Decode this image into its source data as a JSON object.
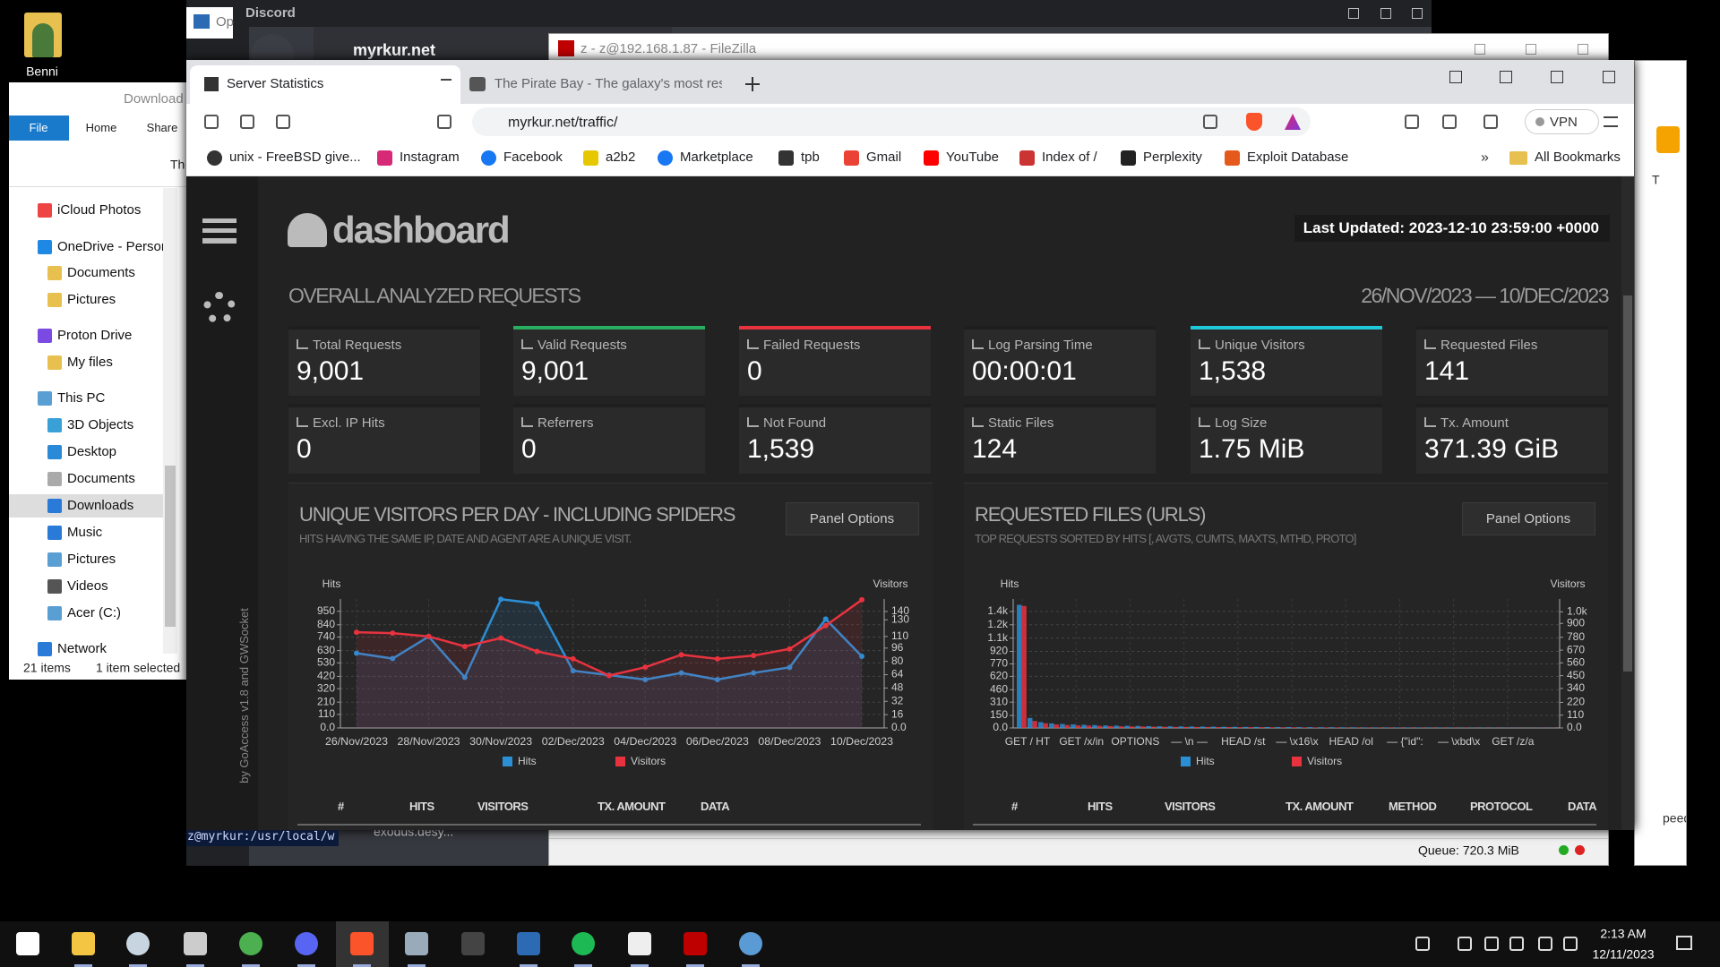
{
  "desktop": {
    "icon_label": "Benni"
  },
  "explorer": {
    "title": "Download",
    "ribbon_tabs": [
      "File",
      "Home",
      "Share"
    ],
    "address": "Th",
    "nav": [
      "iCloud Photos",
      "OneDrive - Person",
      "Documents",
      "Pictures",
      "Proton Drive",
      "My files",
      "This PC",
      "3D Objects",
      "Desktop",
      "Documents",
      "Downloads",
      "Music",
      "Pictures",
      "Videos",
      "Acer (C:)",
      "Network"
    ],
    "status": [
      "21 items",
      "1 item selected"
    ]
  },
  "discord": {
    "title": "Discord",
    "server": "myrkur.net",
    "side_window": "Op",
    "file": "exodus.desy..."
  },
  "filezilla": {
    "title": "z - z@192.168.1.87 - FileZilla",
    "queue": "Queue: 720.3 MiB"
  },
  "right_window": {
    "top": "T",
    "bottom": "peed"
  },
  "terminal": "z@myrkur:/usr/local/w",
  "browser": {
    "tabs": [
      "Server Statistics",
      "The Pirate Bay - The galaxy's most resi"
    ],
    "url": "myrkur.net/traffic/",
    "vpn": "VPN",
    "bookmarks": [
      "unix - FreeBSD give...",
      "Instagram",
      "Facebook",
      "a2b2",
      "Marketplace",
      "tpb",
      "Gmail",
      "YouTube",
      "Index of /",
      "Perplexity",
      "Exploit Database"
    ],
    "more": "»",
    "all_bookmarks": "All Bookmarks"
  },
  "dashboard": {
    "brand": "dashboard",
    "last_updated": "Last Updated: 2023-12-10 23:59:00 +0000",
    "section": "OVERALL ANALYZED REQUESTS",
    "date_range": "26/NOV/2023 — 10/DEC/2023",
    "cards": [
      {
        "label": "Total Requests",
        "value": "9,001"
      },
      {
        "label": "Valid Requests",
        "value": "9,001"
      },
      {
        "label": "Failed Requests",
        "value": "0"
      },
      {
        "label": "Log Parsing Time",
        "value": "00:00:01"
      },
      {
        "label": "Unique Visitors",
        "value": "1,538"
      },
      {
        "label": "Requested Files",
        "value": "141"
      },
      {
        "label": "Excl. IP Hits",
        "value": "0"
      },
      {
        "label": "Referrers",
        "value": "0"
      },
      {
        "label": "Not Found",
        "value": "1,539"
      },
      {
        "label": "Static Files",
        "value": "124"
      },
      {
        "label": "Log Size",
        "value": "1.75 MiB"
      },
      {
        "label": "Tx. Amount",
        "value": "371.39 GiB"
      }
    ],
    "credit": "by GoAccess v1.8 and GWSocket"
  },
  "panels": [
    {
      "title": "UNIQUE VISITORS PER DAY - INCLUDING SPIDERS",
      "subtitle": "HITS HAVING THE SAME IP, DATE AND AGENT ARE A UNIQUE VISIT.",
      "options": "Panel Options",
      "columns": [
        "#",
        "HITS",
        "VISITORS",
        "TX. AMOUNT",
        "DATA"
      ],
      "chart": {
        "type": "line",
        "y_label": "Hits",
        "y2_label": "Visitors",
        "categories": [
          "26/Nov/2023",
          null,
          "28/Nov/2023",
          null,
          "30/Nov/2023",
          null,
          "02/Dec/2023",
          null,
          "04/Dec/2023",
          null,
          "06/Dec/2023",
          null,
          "08/Dec/2023",
          null,
          "10/Dec/2023"
        ],
        "series": [
          {
            "name": "Hits",
            "color": "#2b8fd6",
            "values": [
              609,
              565,
              744,
              412,
              1048,
              1013,
              466,
              430,
              394,
              448,
              394,
              448,
              493,
              887,
              583
            ]
          },
          {
            "name": "Visitors",
            "color": "#e8333f",
            "axis": "y2",
            "values": [
              115,
              114,
              110,
              98,
              108,
              92,
              83,
              63,
              73,
              88,
              83,
              87,
              95,
              123,
              154
            ]
          }
        ],
        "ylim": [
          0,
          1050
        ],
        "yticks": [
          {
            "value": 0,
            "label": "0.0"
          },
          110,
          210,
          320,
          420,
          530,
          630,
          740,
          840,
          950
        ],
        "y2lim": [
          0,
          155
        ],
        "y2ticks": [
          {
            "value": 0,
            "label": "0.0"
          },
          16,
          32,
          48,
          64,
          80,
          96,
          110,
          130,
          140
        ],
        "grid": true
      }
    },
    {
      "title": "REQUESTED FILES (URLS)",
      "subtitle": "TOP REQUESTS SORTED BY HITS [, AVGTS, CUMTS, MAXTS, MTHD, PROTO]",
      "options": "Panel Options",
      "columns": [
        "#",
        "HITS",
        "VISITORS",
        "TX. AMOUNT",
        "METHOD",
        "PROTOCOL",
        "DATA"
      ],
      "chart": {
        "type": "bar",
        "y_label": "Hits",
        "y2_label": "Visitors",
        "categories": [
          "GET / HT",
          null,
          null,
          null,
          null,
          "GET /x/in",
          null,
          null,
          null,
          null,
          "OPTIONS",
          null,
          null,
          null,
          null,
          "— \\n —",
          null,
          null,
          null,
          null,
          "HEAD /st",
          null,
          null,
          null,
          null,
          "— \\x16\\x",
          null,
          null,
          null,
          null,
          "HEAD /ol",
          null,
          null,
          null,
          null,
          "— {\"id\":",
          null,
          null,
          null,
          null,
          "— \\xbd\\x",
          null,
          null,
          null,
          null,
          "GET /z/a",
          null,
          null,
          null,
          null
        ],
        "series": [
          {
            "name": "Hits",
            "color": "#2b8fd6",
            "values": [
              1480,
              120,
              70,
              55,
              48,
              42,
              38,
              34,
              30,
              28,
              26,
              24,
              22,
              20,
              19,
              18,
              17,
              16,
              15,
              14,
              13,
              12,
              12,
              11,
              10,
              10,
              9,
              9,
              8,
              8,
              7,
              7,
              6,
              6,
              6,
              5,
              5,
              5,
              4,
              4,
              4,
              3,
              3,
              3,
              3,
              2,
              2,
              2,
              2,
              2
            ]
          },
          {
            "name": "Visitors",
            "color": "#e8333f",
            "axis": "y2",
            "values": [
              1050,
              60,
              40,
              30,
              25,
              22,
              20,
              18,
              16,
              14,
              13,
              12,
              11,
              10,
              9,
              9,
              8,
              8,
              7,
              7,
              6,
              6,
              6,
              5,
              5,
              5,
              4,
              4,
              4,
              4,
              3,
              3,
              3,
              3,
              3,
              2,
              2,
              2,
              2,
              2,
              2,
              2,
              1,
              1,
              1,
              1,
              1,
              1,
              1,
              1
            ]
          }
        ],
        "ylim": [
          0,
          1550
        ],
        "yticks": [
          {
            "value": 0,
            "label": "0.0"
          },
          150,
          310,
          460,
          620,
          770,
          920,
          {
            "value": 1080,
            "label": "1.1k"
          },
          {
            "value": 1240,
            "label": "1.2k"
          },
          {
            "value": 1400,
            "label": "1.4k"
          }
        ],
        "y2lim": [
          0,
          1110
        ],
        "y2ticks": [
          {
            "value": 0,
            "label": "0.0"
          },
          110,
          220,
          340,
          450,
          560,
          670,
          780,
          900,
          {
            "value": 1000,
            "label": "1.0k"
          }
        ],
        "grid": true
      }
    }
  ],
  "taskbar": {
    "time": "2:13 AM",
    "date": "12/11/2023"
  }
}
